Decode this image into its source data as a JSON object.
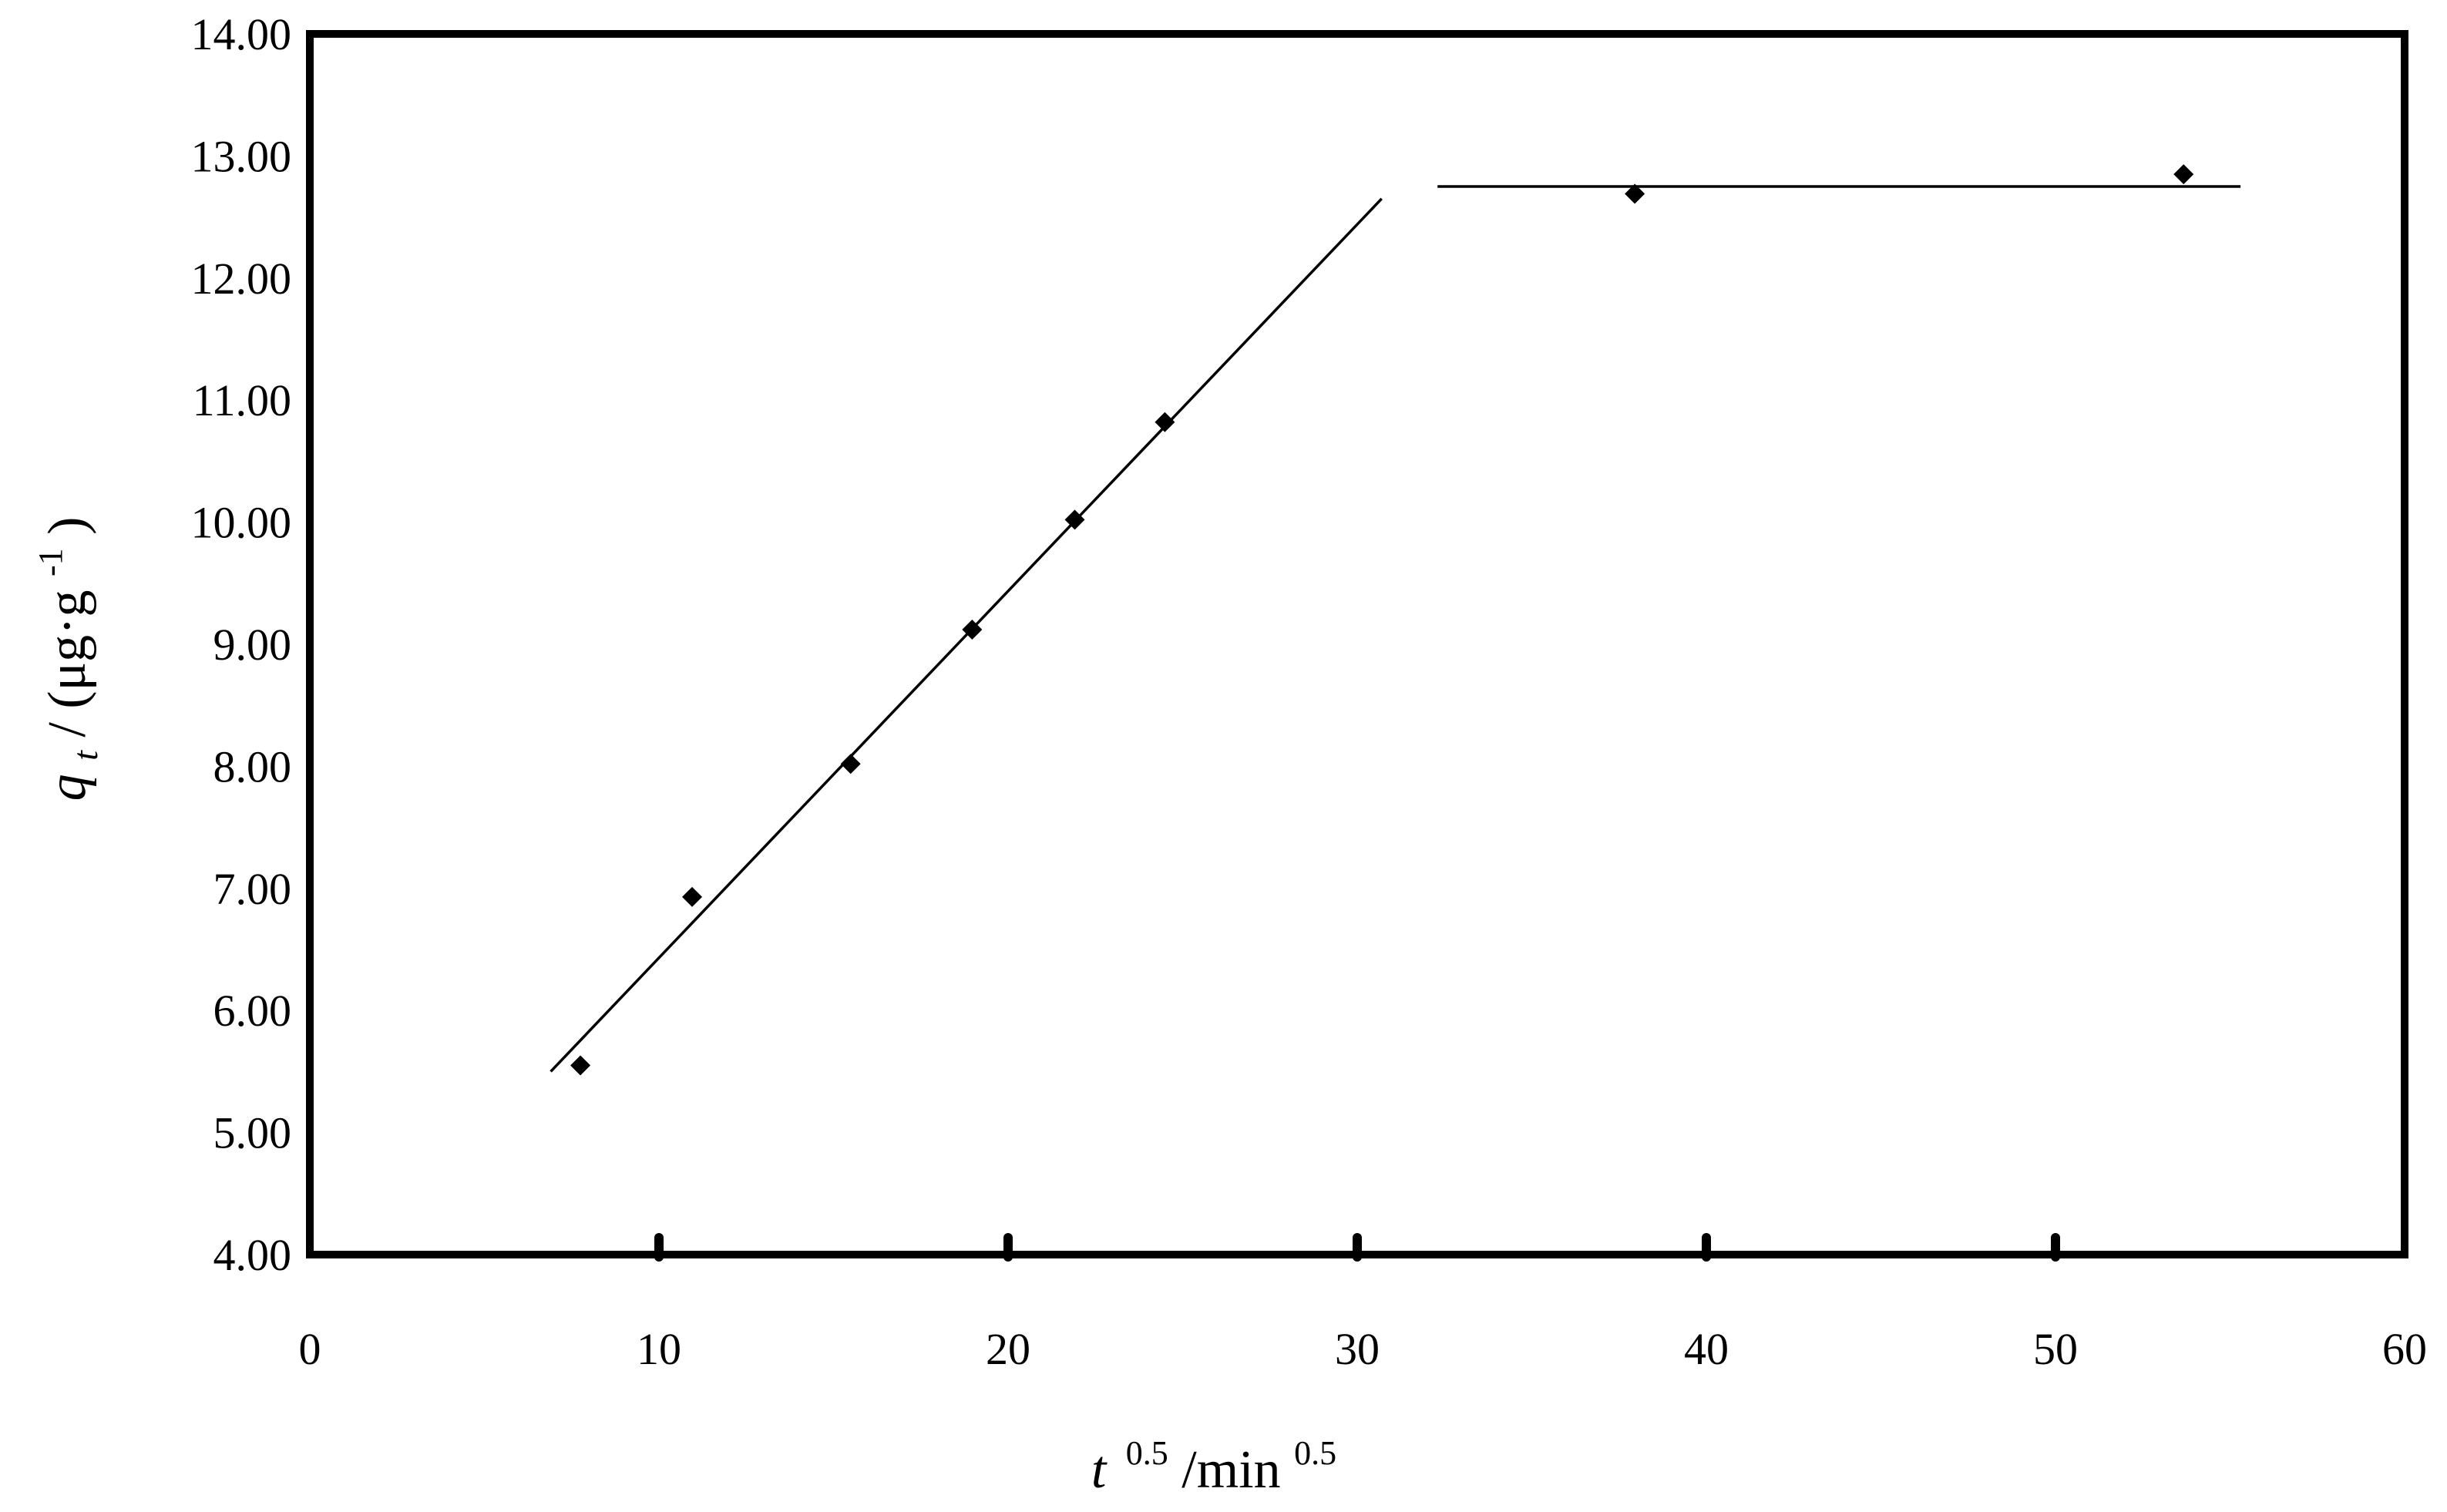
{
  "chart_data": {
    "type": "scatter",
    "xlim": [
      0,
      60
    ],
    "ylim": [
      4.0,
      14.0
    ],
    "x_ticks": [
      "0",
      "10",
      "20",
      "30",
      "40",
      "50",
      "60"
    ],
    "y_ticks": [
      "4.00",
      "5.00",
      "6.00",
      "7.00",
      "8.00",
      "9.00",
      "10.00",
      "11.00",
      "12.00",
      "13.00",
      "14.00"
    ],
    "x_tick_values": [
      0,
      10,
      20,
      30,
      40,
      50,
      60
    ],
    "y_tick_values": [
      4,
      5,
      6,
      7,
      8,
      9,
      10,
      11,
      12,
      13,
      14
    ],
    "xlabel": {
      "var": "t",
      "var_exp": "0.5",
      "unit": "/min",
      "unit_exp": "0.5"
    },
    "ylabel": {
      "var": "q",
      "var_sub": "t",
      "unit_prefix": " / (μg·g",
      "unit_exp": "-1",
      "unit_suffix": ")"
    },
    "grid": false,
    "series": [
      {
        "marker": "diamond",
        "points": [
          {
            "x": 7.75,
            "y": 5.55
          },
          {
            "x": 10.95,
            "y": 6.93
          },
          {
            "x": 15.49,
            "y": 8.02
          },
          {
            "x": 18.97,
            "y": 9.12
          },
          {
            "x": 21.91,
            "y": 10.02
          },
          {
            "x": 24.49,
            "y": 10.82
          },
          {
            "x": 37.95,
            "y": 12.69
          },
          {
            "x": 53.67,
            "y": 12.85
          }
        ]
      }
    ],
    "fit_lines": [
      {
        "x1": 6.9,
        "y1": 5.5,
        "x2": 30.7,
        "y2": 12.65
      },
      {
        "x1": 32.3,
        "y1": 12.75,
        "x2": 55.3,
        "y2": 12.75
      }
    ],
    "colors": {
      "axis": "#000000",
      "marker": "#000000",
      "line": "#000000"
    }
  }
}
